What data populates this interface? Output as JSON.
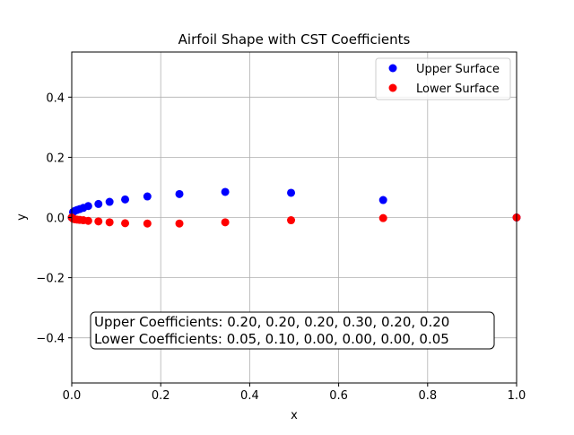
{
  "chart_data": {
    "type": "scatter",
    "title": "Airfoil Shape with CST Coefficients",
    "xlabel": "x",
    "ylabel": "y",
    "xlim": [
      0.0,
      1.0
    ],
    "ylim": [
      -0.55,
      0.55
    ],
    "xticks": [
      0.0,
      0.2,
      0.4,
      0.6,
      0.8,
      1.0
    ],
    "xtick_labels": [
      "0.0",
      "0.2",
      "0.4",
      "0.6",
      "0.8",
      "1.0"
    ],
    "yticks": [
      -0.4,
      -0.2,
      0.0,
      0.2,
      0.4
    ],
    "ytick_labels": [
      "−0.4",
      "−0.2",
      "0.0",
      "0.2",
      "0.4"
    ],
    "grid": true,
    "legend_position": "top-right",
    "series": [
      {
        "name": "Upper Surface",
        "color": "#0000ff",
        "x": [
          0.0,
          0.003,
          0.007,
          0.012,
          0.018,
          0.026,
          0.037,
          0.06,
          0.085,
          0.12,
          0.17,
          0.242,
          0.345,
          0.493,
          0.7,
          1.0
        ],
        "y": [
          0.0,
          0.018,
          0.022,
          0.025,
          0.028,
          0.032,
          0.038,
          0.045,
          0.052,
          0.06,
          0.07,
          0.078,
          0.085,
          0.082,
          0.058,
          0.0
        ]
      },
      {
        "name": "Lower Surface",
        "color": "#ff0000",
        "x": [
          0.0,
          0.003,
          0.007,
          0.012,
          0.018,
          0.026,
          0.037,
          0.06,
          0.085,
          0.12,
          0.17,
          0.242,
          0.345,
          0.493,
          0.7,
          1.0
        ],
        "y": [
          0.0,
          -0.004,
          -0.006,
          -0.007,
          -0.008,
          -0.009,
          -0.011,
          -0.013,
          -0.016,
          -0.019,
          -0.02,
          -0.02,
          -0.016,
          -0.009,
          -0.002,
          0.0
        ]
      }
    ],
    "annotation": {
      "lines": [
        "Upper Coefficients: 0.20, 0.20, 0.20, 0.30, 0.20, 0.20",
        "Lower Coefficients: 0.05, 0.10, 0.00, 0.00, 0.00, 0.05"
      ]
    }
  }
}
